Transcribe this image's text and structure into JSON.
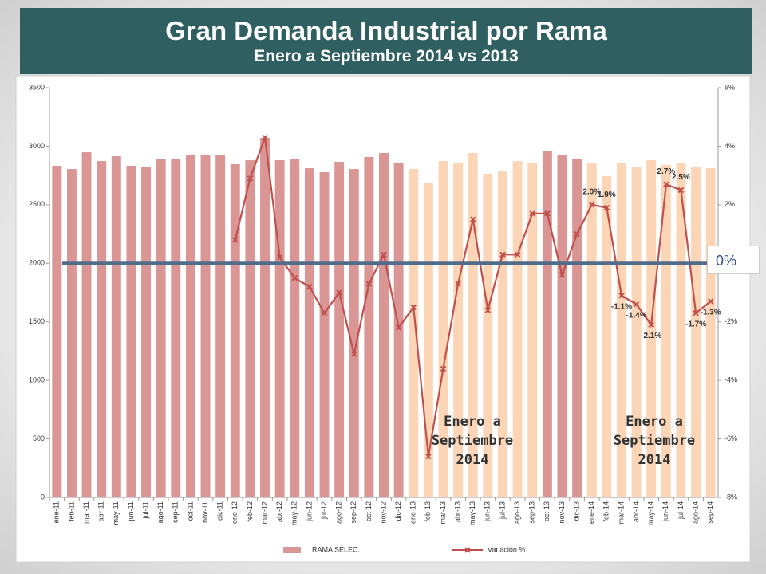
{
  "chart_data": {
    "type": "bar_line",
    "title": "Gran Demanda Industrial por Rama",
    "subtitle": "Enero a Septiembre 2014 vs 2013",
    "categories": [
      "ene-11",
      "feb-11",
      "mar-11",
      "abr-11",
      "may-11",
      "jun-11",
      "jul-11",
      "ago-11",
      "sep-11",
      "oct-11",
      "nov-11",
      "dic-11",
      "ene-12",
      "feb-12",
      "mar-12",
      "abr-12",
      "may-12",
      "jun-12",
      "jul-12",
      "ago-12",
      "sep-12",
      "oct-12",
      "nov-12",
      "dic-12",
      "ene-13",
      "feb-13",
      "mar-13",
      "abr-13",
      "may-13",
      "jun-13",
      "jul-13",
      "ago-13",
      "sep-13",
      "oct-13",
      "nov-13",
      "dic-13",
      "ene-14",
      "feb-14",
      "mar-14",
      "abr-14",
      "may-14",
      "jun-14",
      "jul-14",
      "ago-14",
      "sep-14"
    ],
    "series": [
      {
        "name": "RAMA SELEC.",
        "type": "bar",
        "color": "#d99694",
        "colors": [
          "#d99694",
          "#d99694",
          "#d99694",
          "#d99694",
          "#d99694",
          "#d99694",
          "#d99694",
          "#d99694",
          "#d99694",
          "#d99694",
          "#d99694",
          "#d99694",
          "#d99694",
          "#d99694",
          "#d99694",
          "#d99694",
          "#d99694",
          "#d99694",
          "#d99694",
          "#d99694",
          "#d99694",
          "#d99694",
          "#d99694",
          "#d99694",
          "#fbd5b5",
          "#fbd5b5",
          "#fbd5b5",
          "#fbd5b5",
          "#fbd5b5",
          "#fbd5b5",
          "#fbd5b5",
          "#fbd5b5",
          "#fbd5b5",
          "#d99694",
          "#d99694",
          "#d99694",
          "#fbd5b5",
          "#fbd5b5",
          "#fbd5b5",
          "#fbd5b5",
          "#fbd5b5",
          "#fbd5b5",
          "#fbd5b5",
          "#fbd5b5",
          "#fbd5b5"
        ],
        "values": [
          2833,
          2805,
          2948,
          2873,
          2914,
          2833,
          2819,
          2894,
          2894,
          2928,
          2928,
          2921,
          2846,
          2880,
          3071,
          2880,
          2894,
          2812,
          2778,
          2867,
          2805,
          2908,
          2942,
          2860,
          2805,
          2690,
          2873,
          2860,
          2942,
          2765,
          2785,
          2873,
          2853,
          2962,
          2928,
          2894,
          2860,
          2744,
          2853,
          2826,
          2880,
          2840,
          2853,
          2826,
          2812
        ]
      },
      {
        "name": "Variación %",
        "type": "line",
        "axis": "y2",
        "color": "#c0504d",
        "values": [
          null,
          null,
          null,
          null,
          null,
          null,
          null,
          null,
          null,
          null,
          null,
          null,
          0.8,
          2.9,
          4.3,
          0.2,
          -0.5,
          -0.8,
          -1.7,
          -1.0,
          -3.1,
          -0.7,
          0.3,
          -2.2,
          -1.5,
          -6.6,
          -3.6,
          -0.7,
          1.5,
          -1.6,
          0.3,
          0.3,
          1.7,
          1.7,
          -0.4,
          1.0,
          2.0,
          1.9,
          -1.1,
          -1.4,
          -2.1,
          2.7,
          2.5,
          -1.7,
          -1.3
        ],
        "value_labels": [
          null,
          null,
          null,
          null,
          null,
          null,
          null,
          null,
          null,
          null,
          null,
          null,
          null,
          null,
          null,
          null,
          null,
          null,
          null,
          null,
          null,
          null,
          null,
          null,
          null,
          null,
          null,
          null,
          null,
          null,
          null,
          null,
          null,
          null,
          null,
          null,
          "2.0%",
          "1.9%",
          "-1.1%",
          "-1.4%",
          "-2.1%",
          "2.7%",
          "2.5%",
          "-1.7%",
          "-1.3%"
        ]
      }
    ],
    "ylim": [
      0,
      3500
    ],
    "yticks": [
      0,
      500,
      1000,
      1500,
      2000,
      2500,
      3000,
      3500
    ],
    "y2lim": [
      -8,
      6
    ],
    "y2ticks": [
      {
        "value": -8,
        "label": "-8%"
      },
      {
        "value": -6,
        "label": "-6%"
      },
      {
        "value": -4,
        "label": "-4%"
      },
      {
        "value": -2,
        "label": "-2%"
      },
      {
        "value": 0,
        "label": "0%"
      },
      {
        "value": 2,
        "label": "2%"
      },
      {
        "value": 4,
        "label": "4%"
      },
      {
        "value": 6,
        "label": "6%"
      }
    ],
    "reference_line": {
      "value": 0,
      "axis": "y2",
      "label": "0%",
      "color": "#4f6d8a"
    },
    "annotations": [
      "Enero a Septiembre 2014",
      "Enero a Septiembre 2014"
    ],
    "legend": "bottom",
    "grid": false
  }
}
